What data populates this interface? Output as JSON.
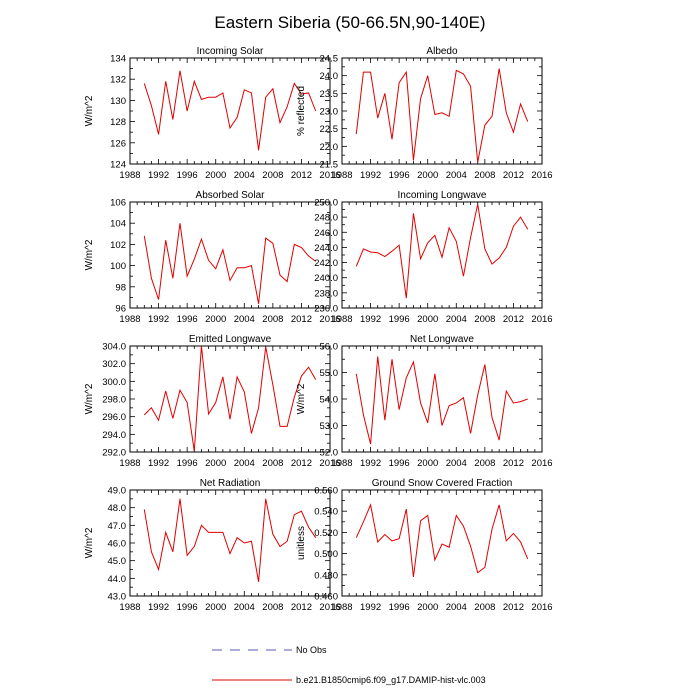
{
  "figure": {
    "title": "Eastern Siberia (50-66.5N,90-140E)",
    "legend": [
      {
        "label": "No Obs",
        "color": "#5a5ab4",
        "style": "dashed"
      },
      {
        "label": "b.e21.B1850cmip6.f09_g17.DAMIP-hist-vlc.003",
        "color": "#e00000",
        "style": "solid"
      }
    ]
  },
  "chart_data": [
    {
      "type": "line",
      "title": "Incoming Solar",
      "ylabel": "W/m^2",
      "xlim": [
        1988,
        2016
      ],
      "xticks": [
        1988,
        1992,
        1996,
        2000,
        2004,
        2008,
        2012,
        2016
      ],
      "ylim": [
        124,
        134
      ],
      "yticks": [
        124,
        126,
        128,
        130,
        132,
        134
      ],
      "ytick_labels": [
        "124",
        "126",
        "128",
        "130",
        "132",
        "134"
      ],
      "series": [
        {
          "color": "#e00000",
          "x": [
            1990,
            1991,
            1992,
            1993,
            1994,
            1995,
            1996,
            1997,
            1998,
            1999,
            2000,
            2001,
            2002,
            2003,
            2004,
            2005,
            2006,
            2007,
            2008,
            2009,
            2010,
            2011,
            2012,
            2013,
            2014
          ],
          "y": [
            131.6,
            129.5,
            126.8,
            131.8,
            128.2,
            132.8,
            129.0,
            131.8,
            130.1,
            130.3,
            130.3,
            130.7,
            127.4,
            128.4,
            131.0,
            130.7,
            125.3,
            130.3,
            131.1,
            127.9,
            129.4,
            131.6,
            130.6,
            130.7,
            129.0
          ]
        }
      ]
    },
    {
      "type": "line",
      "title": "Albedo",
      "ylabel": "% reflected",
      "xlim": [
        1988,
        2016
      ],
      "xticks": [
        1988,
        1992,
        1996,
        2000,
        2004,
        2008,
        2012,
        2016
      ],
      "ylim": [
        21.5,
        24.5
      ],
      "yticks": [
        21.5,
        22.0,
        22.5,
        23.0,
        23.5,
        24.0,
        24.5
      ],
      "ytick_labels": [
        "21.5",
        "22.0",
        "22.5",
        "23.0",
        "23.5",
        "24.0",
        "24.5"
      ],
      "series": [
        {
          "color": "#e00000",
          "x": [
            1990,
            1991,
            1992,
            1993,
            1994,
            1995,
            1996,
            1997,
            1998,
            1999,
            2000,
            2001,
            2002,
            2003,
            2004,
            2005,
            2006,
            2007,
            2008,
            2009,
            2010,
            2011,
            2012,
            2013,
            2014
          ],
          "y": [
            22.35,
            24.1,
            24.1,
            22.8,
            23.5,
            22.2,
            23.8,
            24.1,
            21.6,
            23.35,
            24.0,
            22.9,
            22.95,
            22.85,
            24.15,
            24.05,
            23.7,
            21.55,
            22.6,
            22.85,
            24.2,
            22.95,
            22.4,
            23.2,
            22.7
          ]
        }
      ]
    },
    {
      "type": "line",
      "title": "Absorbed Solar",
      "ylabel": "W/m^2",
      "xlim": [
        1988,
        2016
      ],
      "xticks": [
        1988,
        1992,
        1996,
        2000,
        2004,
        2008,
        2012,
        2016
      ],
      "ylim": [
        96,
        106
      ],
      "yticks": [
        96,
        98,
        100,
        102,
        104,
        106
      ],
      "ytick_labels": [
        "96",
        "98",
        "100",
        "102",
        "104",
        "106"
      ],
      "series": [
        {
          "color": "#e00000",
          "x": [
            1990,
            1991,
            1992,
            1993,
            1994,
            1995,
            1996,
            1997,
            1998,
            1999,
            2000,
            2001,
            2002,
            2003,
            2004,
            2005,
            2006,
            2007,
            2008,
            2009,
            2010,
            2011,
            2012,
            2013,
            2014
          ],
          "y": [
            102.8,
            98.8,
            96.8,
            102.4,
            98.8,
            104.0,
            99.0,
            100.6,
            102.5,
            100.5,
            99.7,
            101.5,
            98.6,
            99.8,
            99.8,
            100.0,
            96.4,
            102.6,
            102.1,
            99.1,
            98.5,
            102.0,
            101.7,
            100.9,
            100.4
          ]
        }
      ]
    },
    {
      "type": "line",
      "title": "Incoming Longwave",
      "ylabel": "",
      "xlim": [
        1988,
        2016
      ],
      "xticks": [
        1988,
        1992,
        1996,
        2000,
        2004,
        2008,
        2012,
        2016
      ],
      "ylim": [
        236,
        250
      ],
      "yticks": [
        236,
        238,
        240,
        242,
        244,
        246,
        248,
        250
      ],
      "ytick_labels": [
        "236.0",
        "238.0",
        "240.0",
        "242.0",
        "244.0",
        "246.0",
        "248.0",
        "250.0"
      ],
      "series": [
        {
          "color": "#e00000",
          "x": [
            1990,
            1991,
            1992,
            1993,
            1994,
            1995,
            1996,
            1997,
            1998,
            1999,
            2000,
            2001,
            2002,
            2003,
            2004,
            2005,
            2006,
            2007,
            2008,
            2009,
            2010,
            2011,
            2012,
            2013,
            2014
          ],
          "y": [
            241.5,
            243.8,
            243.4,
            243.3,
            242.8,
            243.5,
            244.3,
            237.3,
            248.5,
            242.5,
            244.6,
            245.6,
            242.7,
            246.6,
            244.8,
            240.2,
            245.3,
            249.7,
            243.8,
            241.8,
            242.6,
            244.0,
            246.8,
            248.0,
            246.4
          ]
        }
      ]
    },
    {
      "type": "line",
      "title": "Emitted Longwave",
      "ylabel": "W/m^2",
      "xlim": [
        1988,
        2016
      ],
      "xticks": [
        1988,
        1992,
        1996,
        2000,
        2004,
        2008,
        2012,
        2016
      ],
      "ylim": [
        292,
        304
      ],
      "yticks": [
        292,
        294,
        296,
        298,
        300,
        302,
        304
      ],
      "ytick_labels": [
        "292.0",
        "294.0",
        "296.0",
        "298.0",
        "300.0",
        "302.0",
        "304.0"
      ],
      "series": [
        {
          "color": "#e00000",
          "x": [
            1990,
            1991,
            1992,
            1993,
            1994,
            1995,
            1996,
            1997,
            1998,
            1999,
            2000,
            2001,
            2002,
            2003,
            2004,
            2005,
            2006,
            2007,
            2008,
            2009,
            2010,
            2011,
            2012,
            2013,
            2014
          ],
          "y": [
            296.2,
            297.0,
            295.6,
            298.9,
            295.8,
            299.0,
            297.6,
            292.1,
            304.0,
            296.3,
            297.6,
            300.5,
            295.7,
            300.5,
            298.8,
            294.1,
            297.0,
            303.9,
            299.6,
            294.9,
            294.9,
            298.2,
            300.6,
            301.6,
            300.2
          ]
        }
      ]
    },
    {
      "type": "line",
      "title": "Net Longwave",
      "ylabel": "W/m^2",
      "xlim": [
        1988,
        2016
      ],
      "xticks": [
        1988,
        1992,
        1996,
        2000,
        2004,
        2008,
        2012,
        2016
      ],
      "ylim": [
        52,
        56
      ],
      "yticks": [
        52,
        53,
        54,
        55,
        56
      ],
      "ytick_labels": [
        "52.0",
        "53.0",
        "54.0",
        "55.0",
        "56.0"
      ],
      "series": [
        {
          "color": "#e00000",
          "x": [
            1990,
            1991,
            1992,
            1993,
            1994,
            1995,
            1996,
            1997,
            1998,
            1999,
            2000,
            2001,
            2002,
            2003,
            2004,
            2005,
            2006,
            2007,
            2008,
            2009,
            2010,
            2011,
            2012,
            2013,
            2014
          ],
          "y": [
            54.95,
            53.4,
            52.3,
            55.6,
            53.2,
            55.5,
            53.6,
            54.8,
            55.4,
            53.85,
            53.1,
            54.95,
            53.0,
            53.75,
            53.85,
            54.05,
            52.7,
            54.15,
            55.3,
            53.3,
            52.45,
            54.3,
            53.85,
            53.9,
            54.0
          ]
        }
      ]
    },
    {
      "type": "line",
      "title": "Net Radiation",
      "ylabel": "W/m^2",
      "xlim": [
        1988,
        2016
      ],
      "xticks": [
        1988,
        1992,
        1996,
        2000,
        2004,
        2008,
        2012,
        2016
      ],
      "ylim": [
        43,
        49
      ],
      "yticks": [
        43,
        44,
        45,
        46,
        47,
        48,
        49
      ],
      "ytick_labels": [
        "43.0",
        "44.0",
        "45.0",
        "46.0",
        "47.0",
        "48.0",
        "49.0"
      ],
      "series": [
        {
          "color": "#e00000",
          "x": [
            1990,
            1991,
            1992,
            1993,
            1994,
            1995,
            1996,
            1997,
            1998,
            1999,
            2000,
            2001,
            2002,
            2003,
            2004,
            2005,
            2006,
            2007,
            2008,
            2009,
            2010,
            2011,
            2012,
            2013,
            2014
          ],
          "y": [
            47.9,
            45.5,
            44.5,
            46.6,
            45.5,
            48.5,
            45.3,
            45.8,
            47.0,
            46.6,
            46.6,
            46.6,
            45.4,
            46.3,
            46.0,
            46.1,
            43.8,
            48.5,
            46.5,
            45.8,
            46.1,
            47.6,
            47.8,
            46.9,
            46.3
          ]
        }
      ]
    },
    {
      "type": "line",
      "title": "Ground Snow Covered Fraction",
      "ylabel": "unitless",
      "xlim": [
        1988,
        2016
      ],
      "xticks": [
        1988,
        1992,
        1996,
        2000,
        2004,
        2008,
        2012,
        2016
      ],
      "ylim": [
        0.46,
        0.56
      ],
      "yticks": [
        0.46,
        0.48,
        0.5,
        0.52,
        0.54,
        0.56
      ],
      "ytick_labels": [
        "0.460",
        "0.480",
        "0.500",
        "0.520",
        "0.540",
        "0.560"
      ],
      "series": [
        {
          "color": "#e00000",
          "x": [
            1990,
            1991,
            1992,
            1993,
            1994,
            1995,
            1996,
            1997,
            1998,
            1999,
            2000,
            2001,
            2002,
            2003,
            2004,
            2005,
            2006,
            2007,
            2008,
            2009,
            2010,
            2011,
            2012,
            2013,
            2014
          ],
          "y": [
            0.515,
            0.53,
            0.546,
            0.511,
            0.518,
            0.512,
            0.514,
            0.542,
            0.478,
            0.531,
            0.536,
            0.494,
            0.509,
            0.506,
            0.536,
            0.526,
            0.507,
            0.482,
            0.487,
            0.523,
            0.546,
            0.512,
            0.519,
            0.511,
            0.495
          ]
        }
      ]
    }
  ]
}
